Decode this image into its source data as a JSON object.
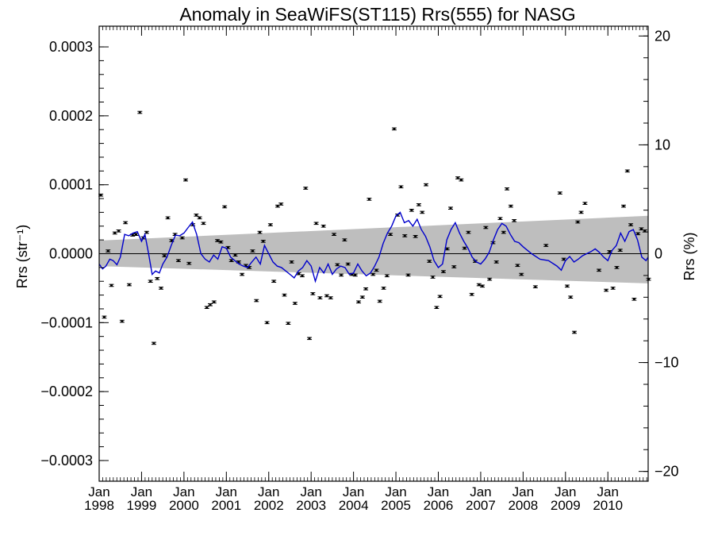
{
  "chart_data": {
    "type": "scatter",
    "title": "Anomaly in SeaWiFS(ST115) Rrs(555) for NASG",
    "ylabel_left": "Rrs (str⁻¹)",
    "ylabel_right": "Rrs (%)",
    "x_range": [
      1998.0,
      2010.95
    ],
    "y_range": [
      -0.00033,
      0.00033
    ],
    "y2_range": [
      -20.9,
      20.9
    ],
    "y_ticks": [
      {
        "value": 0.0003,
        "label": "0.0003"
      },
      {
        "value": 0.0002,
        "label": "0.0002"
      },
      {
        "value": 0.0001,
        "label": "0.0001"
      },
      {
        "value": 0.0,
        "label": "0.0000"
      },
      {
        "value": -0.0001,
        "label": "−0.0001"
      },
      {
        "value": -0.0002,
        "label": "−0.0002"
      },
      {
        "value": -0.0003,
        "label": "−0.0003"
      }
    ],
    "y2_ticks": [
      {
        "value": 20,
        "label": "20"
      },
      {
        "value": 10,
        "label": "10"
      },
      {
        "value": 0,
        "label": "0"
      },
      {
        "value": -10,
        "label": "−10"
      },
      {
        "value": -20,
        "label": "−20"
      }
    ],
    "x_ticks": [
      {
        "value": 1998,
        "label1": "Jan",
        "label2": "1998"
      },
      {
        "value": 1999,
        "label1": "Jan",
        "label2": "1999"
      },
      {
        "value": 2000,
        "label1": "Jan",
        "label2": "2000"
      },
      {
        "value": 2001,
        "label1": "Jan",
        "label2": "2001"
      },
      {
        "value": 2002,
        "label1": "Jan",
        "label2": "2002"
      },
      {
        "value": 2003,
        "label1": "Jan",
        "label2": "2003"
      },
      {
        "value": 2004,
        "label1": "Jan",
        "label2": "2004"
      },
      {
        "value": 2005,
        "label1": "Jan",
        "label2": "2005"
      },
      {
        "value": 2006,
        "label1": "Jan",
        "label2": "2006"
      },
      {
        "value": 2007,
        "label1": "Jan",
        "label2": "2007"
      },
      {
        "value": 2008,
        "label1": "Jan",
        "label2": "2008"
      },
      {
        "value": 2009,
        "label1": "Jan",
        "label2": "2009"
      },
      {
        "value": 2010,
        "label1": "Jan",
        "label2": "2010"
      }
    ],
    "band": {
      "x": [
        1998.0,
        2010.95
      ],
      "upper": [
        1.9e-05,
        5.5e-05
      ],
      "lower": [
        -1.8e-05,
        -4.3e-05
      ],
      "color": "#bebebe"
    },
    "points": [
      {
        "x": 1998.04,
        "y": 8.5e-05
      },
      {
        "x": 1998.12,
        "y": -9.2e-05
      },
      {
        "x": 1998.21,
        "y": 4e-06
      },
      {
        "x": 1998.29,
        "y": -4.6e-05
      },
      {
        "x": 1998.37,
        "y": 3e-05
      },
      {
        "x": 1998.46,
        "y": 3.3e-05
      },
      {
        "x": 1998.54,
        "y": -9.8e-05
      },
      {
        "x": 1998.62,
        "y": 4.5e-05
      },
      {
        "x": 1998.71,
        "y": -4.5e-05
      },
      {
        "x": 1998.79,
        "y": 2.7e-05
      },
      {
        "x": 1998.87,
        "y": 2.8e-05
      },
      {
        "x": 1998.96,
        "y": 0.000205
      },
      {
        "x": 1999.04,
        "y": 2.3e-05
      },
      {
        "x": 1999.12,
        "y": 3.1e-05
      },
      {
        "x": 1999.21,
        "y": -4e-05
      },
      {
        "x": 1999.29,
        "y": -0.00013
      },
      {
        "x": 1999.37,
        "y": -3.6e-05
      },
      {
        "x": 1999.46,
        "y": -5e-05
      },
      {
        "x": 1999.54,
        "y": -3e-06
      },
      {
        "x": 1999.62,
        "y": 5.2e-05
      },
      {
        "x": 1999.71,
        "y": 1.9e-05
      },
      {
        "x": 1999.79,
        "y": 2.8e-05
      },
      {
        "x": 1999.87,
        "y": -1e-05
      },
      {
        "x": 1999.96,
        "y": 2.3e-05
      },
      {
        "x": 2000.04,
        "y": 0.000107
      },
      {
        "x": 2000.12,
        "y": -1.4e-05
      },
      {
        "x": 2000.21,
        "y": 4.2e-05
      },
      {
        "x": 2000.29,
        "y": 5.6e-05
      },
      {
        "x": 2000.37,
        "y": 5.2e-05
      },
      {
        "x": 2000.46,
        "y": 4.4e-05
      },
      {
        "x": 2000.54,
        "y": -7.8e-05
      },
      {
        "x": 2000.62,
        "y": -7.4e-05
      },
      {
        "x": 2000.71,
        "y": -7e-05
      },
      {
        "x": 2000.79,
        "y": 1.9e-05
      },
      {
        "x": 2000.87,
        "y": 1.7e-05
      },
      {
        "x": 2000.96,
        "y": 6.8e-05
      },
      {
        "x": 2001.04,
        "y": 9e-06
      },
      {
        "x": 2001.12,
        "y": -1e-05
      },
      {
        "x": 2001.21,
        "y": -2e-06
      },
      {
        "x": 2001.29,
        "y": -1.2e-05
      },
      {
        "x": 2001.37,
        "y": -3e-05
      },
      {
        "x": 2001.46,
        "y": -1.7e-05
      },
      {
        "x": 2001.54,
        "y": -2e-05
      },
      {
        "x": 2001.62,
        "y": 4e-06
      },
      {
        "x": 2001.71,
        "y": -6.8e-05
      },
      {
        "x": 2001.79,
        "y": 3.1e-05
      },
      {
        "x": 2001.87,
        "y": 1.8e-05
      },
      {
        "x": 2001.96,
        "y": -0.0001
      },
      {
        "x": 2002.04,
        "y": 4.2e-05
      },
      {
        "x": 2002.12,
        "y": -4e-05
      },
      {
        "x": 2002.21,
        "y": 6.9e-05
      },
      {
        "x": 2002.29,
        "y": 7.2e-05
      },
      {
        "x": 2002.37,
        "y": -6e-05
      },
      {
        "x": 2002.46,
        "y": -0.000101
      },
      {
        "x": 2002.54,
        "y": -1.2e-05
      },
      {
        "x": 2002.62,
        "y": -7.2e-05
      },
      {
        "x": 2002.71,
        "y": -2.9e-05
      },
      {
        "x": 2002.79,
        "y": -3.2e-05
      },
      {
        "x": 2002.87,
        "y": 9.5e-05
      },
      {
        "x": 2002.96,
        "y": -0.000123
      },
      {
        "x": 2003.04,
        "y": -5.8e-05
      },
      {
        "x": 2003.12,
        "y": 4.4e-05
      },
      {
        "x": 2003.21,
        "y": -6.4e-05
      },
      {
        "x": 2003.29,
        "y": 4e-05
      },
      {
        "x": 2003.37,
        "y": -6.1e-05
      },
      {
        "x": 2003.46,
        "y": -6.4e-05
      },
      {
        "x": 2003.54,
        "y": 2.8e-05
      },
      {
        "x": 2003.62,
        "y": -1.6e-05
      },
      {
        "x": 2003.71,
        "y": -3.1e-05
      },
      {
        "x": 2003.79,
        "y": 2e-05
      },
      {
        "x": 2003.87,
        "y": -1.5e-05
      },
      {
        "x": 2003.96,
        "y": -3e-05
      },
      {
        "x": 2004.04,
        "y": -3.1e-05
      },
      {
        "x": 2004.12,
        "y": -7e-05
      },
      {
        "x": 2004.21,
        "y": -6.3e-05
      },
      {
        "x": 2004.29,
        "y": -5.1e-05
      },
      {
        "x": 2004.37,
        "y": 7.9e-05
      },
      {
        "x": 2004.46,
        "y": -3e-05
      },
      {
        "x": 2004.54,
        "y": -2.4e-05
      },
      {
        "x": 2004.62,
        "y": -6.9e-05
      },
      {
        "x": 2004.71,
        "y": -5e-05
      },
      {
        "x": 2004.79,
        "y": -3.2e-05
      },
      {
        "x": 2004.87,
        "y": 2.8e-05
      },
      {
        "x": 2004.96,
        "y": 0.000181
      },
      {
        "x": 2005.04,
        "y": 5.6e-05
      },
      {
        "x": 2005.12,
        "y": 9.7e-05
      },
      {
        "x": 2005.21,
        "y": 2.6e-05
      },
      {
        "x": 2005.29,
        "y": -3.1e-05
      },
      {
        "x": 2005.37,
        "y": 6.3e-05
      },
      {
        "x": 2005.46,
        "y": 2.5e-05
      },
      {
        "x": 2005.54,
        "y": 7.1e-05
      },
      {
        "x": 2005.62,
        "y": 6e-05
      },
      {
        "x": 2005.71,
        "y": 0.0001
      },
      {
        "x": 2005.79,
        "y": -1.1e-05
      },
      {
        "x": 2005.87,
        "y": -3.4e-05
      },
      {
        "x": 2005.96,
        "y": -7.8e-05
      },
      {
        "x": 2006.04,
        "y": -6.2e-05
      },
      {
        "x": 2006.12,
        "y": -2.6e-05
      },
      {
        "x": 2006.21,
        "y": 7e-06
      },
      {
        "x": 2006.29,
        "y": 6.6e-05
      },
      {
        "x": 2006.37,
        "y": -1.9e-05
      },
      {
        "x": 2006.46,
        "y": 0.00011
      },
      {
        "x": 2006.54,
        "y": 0.000107
      },
      {
        "x": 2006.62,
        "y": 8e-06
      },
      {
        "x": 2006.71,
        "y": 3.1e-05
      },
      {
        "x": 2006.79,
        "y": -5.9e-05
      },
      {
        "x": 2006.87,
        "y": -1.1e-05
      },
      {
        "x": 2006.96,
        "y": -4.5e-05
      },
      {
        "x": 2007.04,
        "y": -4.7e-05
      },
      {
        "x": 2007.12,
        "y": 3.8e-05
      },
      {
        "x": 2007.21,
        "y": -3.7e-05
      },
      {
        "x": 2007.29,
        "y": 1.6e-05
      },
      {
        "x": 2007.37,
        "y": -1.2e-05
      },
      {
        "x": 2007.46,
        "y": 5.1e-05
      },
      {
        "x": 2007.54,
        "y": 3.1e-05
      },
      {
        "x": 2007.62,
        "y": 9.4e-05
      },
      {
        "x": 2007.71,
        "y": 6.9e-05
      },
      {
        "x": 2007.79,
        "y": 4.8e-05
      },
      {
        "x": 2007.87,
        "y": -1.7e-05
      },
      {
        "x": 2007.96,
        "y": -3e-05
      },
      {
        "x": 2008.29,
        "y": -4.8e-05
      },
      {
        "x": 2008.54,
        "y": 1.2e-05
      },
      {
        "x": 2008.87,
        "y": 8.8e-05
      },
      {
        "x": 2008.96,
        "y": -8e-06
      },
      {
        "x": 2009.04,
        "y": -4.7e-05
      },
      {
        "x": 2009.12,
        "y": -6.3e-05
      },
      {
        "x": 2009.21,
        "y": -0.000114
      },
      {
        "x": 2009.29,
        "y": 4.6e-05
      },
      {
        "x": 2009.37,
        "y": 6e-05
      },
      {
        "x": 2009.46,
        "y": 7.3e-05
      },
      {
        "x": 2009.79,
        "y": -2.4e-05
      },
      {
        "x": 2009.96,
        "y": -5.3e-05
      },
      {
        "x": 2010.04,
        "y": 3e-06
      },
      {
        "x": 2010.12,
        "y": -5e-05
      },
      {
        "x": 2010.21,
        "y": -2e-05
      },
      {
        "x": 2010.29,
        "y": 5e-06
      },
      {
        "x": 2010.37,
        "y": 6.9e-05
      },
      {
        "x": 2010.46,
        "y": 0.00012
      },
      {
        "x": 2010.54,
        "y": 4.2e-05
      },
      {
        "x": 2010.62,
        "y": -6.6e-05
      },
      {
        "x": 2010.71,
        "y": 2.9e-05
      },
      {
        "x": 2010.79,
        "y": 3.6e-05
      },
      {
        "x": 2010.87,
        "y": 3.3e-05
      },
      {
        "x": 2010.96,
        "y": -3.7e-05
      }
    ],
    "error_half_width": 1.5e-06,
    "smoothed_line": {
      "color": "#0000cc",
      "x": [
        1998.0,
        1998.08,
        1998.16,
        1998.25,
        1998.33,
        1998.42,
        1998.5,
        1998.6,
        1998.7,
        1998.8,
        1998.9,
        1999.0,
        1999.08,
        1999.16,
        1999.25,
        1999.33,
        1999.42,
        1999.5,
        1999.6,
        1999.7,
        1999.8,
        1999.9,
        2000.0,
        2000.1,
        2000.2,
        2000.3,
        2000.4,
        2000.5,
        2000.6,
        2000.7,
        2000.8,
        2000.9,
        2001.0,
        2001.1,
        2001.2,
        2001.3,
        2001.4,
        2001.5,
        2001.6,
        2001.7,
        2001.8,
        2001.9,
        2002.0,
        2002.1,
        2002.2,
        2002.3,
        2002.4,
        2002.5,
        2002.6,
        2002.7,
        2002.8,
        2002.9,
        2003.0,
        2003.1,
        2003.2,
        2003.3,
        2003.4,
        2003.5,
        2003.6,
        2003.7,
        2003.8,
        2003.9,
        2004.0,
        2004.1,
        2004.2,
        2004.3,
        2004.4,
        2004.5,
        2004.6,
        2004.7,
        2004.8,
        2004.9,
        2005.0,
        2005.1,
        2005.2,
        2005.3,
        2005.4,
        2005.5,
        2005.6,
        2005.7,
        2005.8,
        2005.9,
        2006.0,
        2006.1,
        2006.2,
        2006.3,
        2006.4,
        2006.5,
        2006.6,
        2006.7,
        2006.8,
        2006.9,
        2007.0,
        2007.1,
        2007.2,
        2007.3,
        2007.4,
        2007.5,
        2007.6,
        2007.7,
        2007.8,
        2007.9,
        2008.0,
        2008.2,
        2008.4,
        2008.6,
        2008.8,
        2008.9,
        2009.0,
        2009.1,
        2009.2,
        2009.3,
        2009.4,
        2009.5,
        2009.6,
        2009.7,
        2009.8,
        2009.9,
        2010.0,
        2010.1,
        2010.2,
        2010.3,
        2010.4,
        2010.5,
        2010.6,
        2010.7,
        2010.8,
        2010.9,
        2010.95
      ],
      "y": [
        -1.5e-05,
        -2.2e-05,
        -1.8e-05,
        -8e-06,
        -1e-05,
        -1.6e-05,
        -5e-06,
        2.8e-05,
        2.6e-05,
        3e-05,
        3.2e-05,
        1.8e-05,
        2.8e-05,
        2e-06,
        -3e-05,
        -2.5e-05,
        -2.8e-05,
        -1.5e-05,
        -5e-06,
        1.2e-05,
        2.7e-05,
        2.6e-05,
        3e-05,
        3.8e-05,
        4.6e-05,
        2.8e-05,
        0.0,
        -8e-06,
        -1.2e-05,
        -2e-06,
        -8e-06,
        1e-05,
        8e-06,
        -5e-06,
        -1e-05,
        -1.5e-05,
        -1.8e-05,
        -2e-05,
        -1.2e-05,
        -5e-06,
        -1.5e-05,
        1.2e-05,
        0.0,
        -1.2e-05,
        -1.8e-05,
        -2e-05,
        -2.5e-05,
        -3e-05,
        -3.5e-05,
        -2.5e-05,
        -2e-05,
        -1e-05,
        -1.8e-05,
        -4e-05,
        -2e-05,
        -2.8e-05,
        -1.5e-05,
        -3e-05,
        -2.2e-05,
        -1.8e-05,
        -2e-05,
        -3e-05,
        -2.8e-05,
        -1.5e-05,
        -2.5e-05,
        -3.2e-05,
        -2.8e-05,
        -1.8e-05,
        -5e-06,
        1.5e-05,
        3e-05,
        4e-05,
        5.5e-05,
        6e-05,
        4.5e-05,
        4.8e-05,
        4e-05,
        5e-05,
        3.5e-05,
        2.5e-05,
        1e-05,
        -1e-05,
        -2e-05,
        -1.5e-05,
        2e-05,
        3.5e-05,
        4.5e-05,
        3e-05,
        1.8e-05,
        8e-06,
        -5e-06,
        -1.2e-05,
        -1.5e-05,
        -8e-06,
        2e-06,
        2e-05,
        3.5e-05,
        4.4e-05,
        4e-05,
        2.8e-05,
        1.8e-05,
        1.6e-05,
        1e-05,
        0.0,
        -8e-06,
        -1e-05,
        -1.8e-05,
        -2.4e-05,
        -1e-05,
        -4e-06,
        -1.2e-05,
        -8e-06,
        -3e-06,
        0.0,
        3e-06,
        7e-06,
        2e-06,
        -5e-06,
        -1e-05,
        5e-06,
        1.2e-05,
        3e-05,
        1.8e-05,
        3.2e-05,
        3.5e-05,
        2e-05,
        -5e-06,
        -1e-05,
        -5e-06
      ]
    }
  }
}
